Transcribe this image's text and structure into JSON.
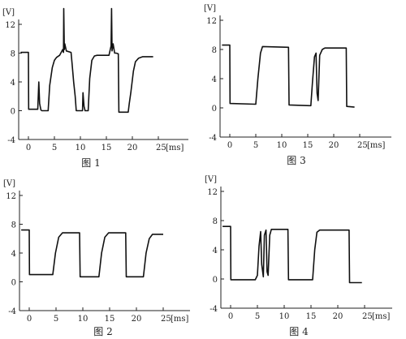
{
  "chart_data": [
    {
      "type": "line",
      "caption": "图 1",
      "y_unit": "[V]",
      "x_unit": "[ms]",
      "ylim": [
        -4,
        12
      ],
      "yticks": [
        "-4",
        "0",
        "4",
        "8",
        "12"
      ],
      "xlim": [
        -1,
        25
      ],
      "xticks": [
        "0",
        "5",
        "10",
        "15",
        "20",
        "25"
      ],
      "grid": false,
      "series": [
        {
          "x": [
            -1.5,
            0.0,
            0.05,
            1.8,
            2.0,
            2.15,
            2.4,
            2.6,
            3.8,
            4.1,
            4.6,
            5.0,
            5.4,
            6.0,
            6.6,
            6.75,
            6.8,
            6.9,
            7.0,
            7.3,
            8.2,
            8.4,
            8.7,
            9.0,
            9.2,
            10.4,
            10.5,
            10.7,
            10.9,
            11.5,
            11.8,
            12.2,
            12.7,
            13.2,
            15.5,
            15.9,
            16.0,
            16.1,
            16.3,
            16.6,
            16.9,
            17.3,
            17.4,
            19.2,
            19.4,
            19.7,
            20.2,
            20.6,
            21.2,
            22.0,
            24.0
          ],
          "y": [
            8.1,
            8.1,
            0.2,
            0.2,
            4.0,
            1.0,
            0.1,
            0.0,
            0.0,
            3.5,
            6.0,
            7.0,
            7.4,
            7.7,
            8.5,
            8.1,
            14.2,
            8.5,
            9.3,
            8.3,
            8.1,
            6.5,
            4.0,
            2.0,
            0.0,
            0.0,
            2.5,
            0.6,
            0.0,
            0.0,
            4.5,
            7.0,
            7.6,
            7.7,
            7.7,
            9.0,
            14.2,
            8.3,
            9.3,
            8.0,
            8.0,
            7.9,
            -0.2,
            -0.2,
            1.0,
            2.5,
            5.5,
            6.8,
            7.3,
            7.5,
            7.5
          ]
        }
      ]
    },
    {
      "type": "line",
      "caption": "图 3",
      "y_unit": "[V]",
      "x_unit": "[ms]",
      "ylim": [
        -4,
        12
      ],
      "yticks": [
        "-4",
        "0",
        "4",
        "8",
        "12"
      ],
      "xlim": [
        -1,
        25
      ],
      "xticks": [
        "0",
        "5",
        "10",
        "15",
        "20",
        "25"
      ],
      "grid": false,
      "series": [
        {
          "x": [
            -1.5,
            0.0,
            0.05,
            5.0,
            5.4,
            5.9,
            6.3,
            11.3,
            11.4,
            15.6,
            15.9,
            16.3,
            16.6,
            16.8,
            17.0,
            17.3,
            17.8,
            18.3,
            22.4,
            22.5,
            24.0
          ],
          "y": [
            8.6,
            8.6,
            0.6,
            0.5,
            4.0,
            7.5,
            8.4,
            8.3,
            0.4,
            0.3,
            3.5,
            7.0,
            7.5,
            2.0,
            1.0,
            7.2,
            8.0,
            8.2,
            8.2,
            0.2,
            0.1
          ]
        }
      ]
    },
    {
      "type": "line",
      "caption": "图 2",
      "y_unit": "[V]",
      "x_unit": "[ms]",
      "ylim": [
        -4,
        12
      ],
      "yticks": [
        "-4",
        "0",
        "4",
        "8",
        "12"
      ],
      "xlim": [
        -1,
        25
      ],
      "xticks": [
        "0",
        "5",
        "10",
        "15",
        "20",
        "25"
      ],
      "grid": false,
      "series": [
        {
          "x": [
            -1.5,
            0.0,
            0.05,
            4.4,
            4.9,
            5.5,
            6.2,
            9.4,
            9.5,
            13.0,
            13.5,
            14.1,
            14.8,
            18.0,
            18.1,
            21.3,
            21.8,
            22.4,
            23.0,
            25.0
          ],
          "y": [
            7.2,
            7.2,
            1.0,
            1.0,
            4.0,
            6.2,
            6.8,
            6.8,
            0.7,
            0.7,
            4.0,
            6.2,
            6.8,
            6.8,
            0.7,
            0.7,
            4.0,
            6.0,
            6.6,
            6.6
          ]
        }
      ]
    },
    {
      "type": "line",
      "caption": "图 4",
      "y_unit": "[V]",
      "x_unit": "[ms]",
      "ylim": [
        -4,
        12
      ],
      "yticks": [
        "-4",
        "0",
        "4",
        "8",
        "12"
      ],
      "xlim": [
        -1,
        25
      ],
      "xticks": [
        "0",
        "5",
        "10",
        "15",
        "20",
        "25"
      ],
      "grid": false,
      "series": [
        {
          "x": [
            -1.5,
            0.0,
            0.05,
            4.6,
            5.0,
            5.3,
            5.6,
            5.8,
            6.1,
            6.3,
            6.6,
            6.8,
            7.0,
            7.3,
            7.6,
            8.0,
            10.7,
            10.8,
            15.3,
            15.7,
            16.1,
            16.6,
            22.1,
            22.2,
            24.5
          ],
          "y": [
            7.2,
            7.2,
            -0.1,
            -0.1,
            0.5,
            4.5,
            6.5,
            2.0,
            0.3,
            6.0,
            6.7,
            1.0,
            0.5,
            6.0,
            6.8,
            6.8,
            6.8,
            -0.1,
            -0.1,
            4.0,
            6.4,
            6.7,
            6.7,
            -0.5,
            -0.5
          ]
        }
      ]
    }
  ]
}
